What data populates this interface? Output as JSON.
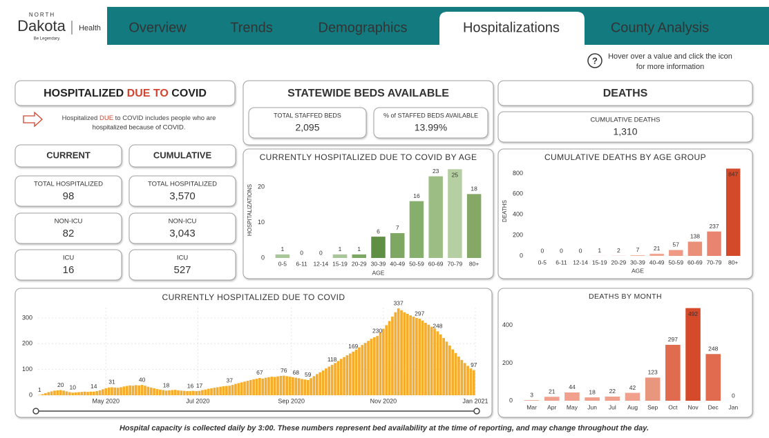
{
  "logo": {
    "north": "NORTH",
    "dakota": "Dakota",
    "health": "Health",
    "tagline": "Be Legendary."
  },
  "nav": {
    "tabs": [
      "Overview",
      "Trends",
      "Demographics",
      "Hospitalizations",
      "County Analysis"
    ],
    "active": 3
  },
  "help": {
    "icon": "?",
    "lines": [
      "Hover over a value and click the icon",
      "for more information"
    ]
  },
  "hospitalized": {
    "title_parts": [
      "HOSPITALIZED ",
      "DUE TO",
      " COVID"
    ],
    "note_parts": [
      "Hospitalized ",
      "DUE",
      " to COVID includes people who are"
    ],
    "note_line2": "hospitalized because of COVID.",
    "columns": [
      {
        "title": "CURRENT",
        "cards": [
          {
            "label": "TOTAL HOSPITALIZED",
            "value": "98",
            "color": "#333333"
          },
          {
            "label": "NON-ICU",
            "value": "82",
            "color": "#c0504d"
          },
          {
            "label": "ICU",
            "value": "16",
            "color": "#3a87ad"
          }
        ]
      },
      {
        "title": "CUMULATIVE",
        "cards": [
          {
            "label": "TOTAL HOSPITALIZED",
            "value": "3,570",
            "color": "#333333"
          },
          {
            "label": "NON-ICU",
            "value": "3,043",
            "color": "#c0504d"
          },
          {
            "label": "ICU",
            "value": "527",
            "color": "#3a87ad"
          }
        ]
      }
    ]
  },
  "beds": {
    "title": "STATEWIDE BEDS AVAILABLE",
    "cards": [
      {
        "label": "TOTAL STAFFED BEDS",
        "value": "2,095",
        "color": "#c0504d"
      },
      {
        "label": "% of STAFFED BEDS AVAILABLE",
        "value": "13.99%",
        "color": "#2e9aa0"
      }
    ]
  },
  "deaths": {
    "title": "DEATHS",
    "label": "CUMULATIVE DEATHS",
    "value": "1,310",
    "color": "#c0504d"
  },
  "footer": "Hospital capacity is collected daily by 3:00. These numbers represent bed availability at the time of reporting, and may change throughout the day.",
  "chart_data": [
    {
      "type": "bar",
      "title": "CURRENTLY HOSPITALIZED DUE TO COVID BY AGE",
      "categories": [
        "0-5",
        "6-11",
        "12-14",
        "15-19",
        "20-29",
        "30-39",
        "40-49",
        "50-59",
        "60-69",
        "70-79",
        "80+"
      ],
      "values": [
        1,
        0,
        0,
        1,
        1,
        6,
        7,
        16,
        23,
        25,
        18
      ],
      "colors": [
        "#a9c59a",
        "#a9c59a",
        "#a9c59a",
        "#a9c59a",
        "#7ea764",
        "#5f8f45",
        "#7ea764",
        "#86ae6c",
        "#9cbd84",
        "#b5cfa2",
        "#86a866"
      ],
      "label_color": "#6b8f4e",
      "ylim": [
        0,
        27
      ],
      "yticks": [
        0,
        10,
        20
      ],
      "xlabel": "AGE",
      "ylabel": "HOSPITALIZATIONS"
    },
    {
      "type": "bar",
      "title": "CUMULATIVE DEATHS BY AGE GROUP",
      "categories": [
        "0-5",
        "6-11",
        "12-14",
        "15-19",
        "20-29",
        "30-39",
        "40-49",
        "50-59",
        "60-69",
        "70-79",
        "80+"
      ],
      "values": [
        0,
        0,
        0,
        1,
        2,
        7,
        21,
        57,
        138,
        237,
        847
      ],
      "colors": [
        "#f3b3a3",
        "#f3b3a3",
        "#f3b3a3",
        "#f3b3a3",
        "#f3b3a3",
        "#f3b3a3",
        "#f1a592",
        "#ee9a85",
        "#ea8f78",
        "#e88470",
        "#d24a2a"
      ],
      "label_color": "#b9472e",
      "ylim": [
        0,
        870
      ],
      "yticks": [
        0,
        200,
        400,
        600,
        800
      ],
      "xlabel": "AGE",
      "ylabel": "DEATHS"
    },
    {
      "type": "daily",
      "title": "CURRENTLY HOSPITALIZED DUE TO COVID",
      "color": "#f6ad2b",
      "label_color": "#c98a1a",
      "grid": true,
      "values": [
        1,
        4,
        8,
        12,
        15,
        18,
        19,
        20,
        18,
        15,
        12,
        10,
        11,
        12,
        13,
        14,
        13,
        14,
        14,
        16,
        19,
        23,
        27,
        30,
        31,
        30,
        29,
        31,
        34,
        36,
        38,
        37,
        39,
        38,
        40,
        37,
        33,
        30,
        27,
        24,
        22,
        20,
        18,
        19,
        20,
        21,
        19,
        18,
        17,
        16,
        16,
        17,
        16,
        17,
        20,
        22,
        25,
        27,
        29,
        31,
        33,
        35,
        36,
        37,
        40,
        44,
        47,
        50,
        53,
        56,
        59,
        62,
        64,
        67,
        65,
        68,
        70,
        72,
        71,
        73,
        75,
        76,
        74,
        72,
        70,
        68,
        66,
        63,
        61,
        59,
        66,
        74,
        82,
        89,
        96,
        104,
        111,
        118,
        125,
        133,
        141,
        148,
        155,
        162,
        169,
        177,
        186,
        195,
        203,
        211,
        219,
        225,
        230,
        244,
        258,
        272,
        288,
        305,
        322,
        337,
        330,
        322,
        316,
        310,
        305,
        300,
        297,
        290,
        281,
        274,
        266,
        258,
        248,
        236,
        222,
        208,
        193,
        178,
        164,
        150,
        137,
        125,
        114,
        104,
        97
      ],
      "value_labels": [
        "1",
        null,
        null,
        null,
        null,
        null,
        null,
        "20",
        null,
        null,
        null,
        "10",
        null,
        null,
        null,
        null,
        null,
        null,
        "14",
        null,
        null,
        null,
        null,
        null,
        "31",
        null,
        null,
        null,
        null,
        null,
        null,
        null,
        null,
        null,
        "40",
        null,
        null,
        null,
        null,
        null,
        null,
        null,
        "18",
        null,
        null,
        null,
        null,
        null,
        null,
        null,
        "16",
        null,
        null,
        "17",
        null,
        null,
        null,
        null,
        null,
        null,
        null,
        null,
        null,
        "37",
        null,
        null,
        null,
        null,
        null,
        null,
        null,
        null,
        null,
        "67",
        null,
        null,
        null,
        null,
        null,
        null,
        null,
        "76",
        null,
        null,
        null,
        "68",
        null,
        null,
        null,
        "59",
        null,
        null,
        null,
        null,
        null,
        null,
        null,
        "118",
        null,
        null,
        null,
        null,
        null,
        null,
        "169",
        null,
        null,
        null,
        null,
        null,
        null,
        null,
        "230",
        null,
        null,
        null,
        null,
        null,
        null,
        "337",
        null,
        null,
        null,
        null,
        null,
        null,
        "297",
        null,
        null,
        null,
        null,
        null,
        "248",
        null,
        null,
        null,
        null,
        null,
        null,
        null,
        null,
        null,
        null,
        null,
        "97"
      ],
      "ylim": [
        0,
        340
      ],
      "yticks": [
        0,
        100,
        200,
        300
      ],
      "xticks": [
        {
          "value": 22,
          "label": "May 2020"
        },
        {
          "value": 52.5,
          "label": "Jul 2020"
        },
        {
          "value": 83.5,
          "label": "Sep 2020"
        },
        {
          "value": 114,
          "label": "Nov 2020"
        },
        {
          "value": 144.5,
          "label": "Jan 2021"
        }
      ]
    },
    {
      "type": "bar",
      "title": "DEATHS BY MONTH",
      "categories": [
        "Mar",
        "Apr",
        "May",
        "Jun",
        "Jul",
        "Aug",
        "Sep",
        "Oct",
        "Nov",
        "Dec",
        "Jan"
      ],
      "values": [
        3,
        21,
        44,
        18,
        22,
        42,
        123,
        297,
        492,
        248,
        0
      ],
      "colors": [
        "#f0a08c",
        "#f0a08c",
        "#f0a08c",
        "#f0a08c",
        "#f0a08c",
        "#f0a08c",
        "#e9967f",
        "#e06b4f",
        "#d44a2a",
        "#e06b4f",
        "#f0a08c"
      ],
      "label_color": "#b9472e",
      "ylim": [
        0,
        520
      ],
      "yticks": [
        0,
        200,
        400
      ]
    }
  ]
}
